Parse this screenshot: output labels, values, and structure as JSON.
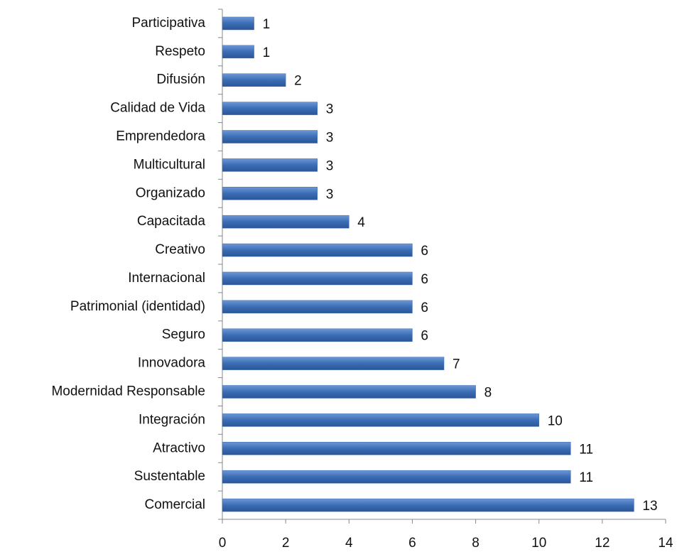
{
  "chart_data": {
    "type": "barh",
    "categories": [
      "Participativa",
      "Respeto",
      "Difusión",
      "Calidad de Vida",
      "Emprendedora",
      "Multicultural",
      "Organizado",
      "Capacitada",
      "Creativo",
      "Internacional",
      "Patrimonial (identidad)",
      "Seguro",
      "Innovadora",
      "Modernidad Responsable",
      "Integración",
      "Atractivo",
      "Sustentable",
      "Comercial"
    ],
    "values": [
      1,
      1,
      2,
      3,
      3,
      3,
      3,
      4,
      6,
      6,
      6,
      6,
      7,
      8,
      10,
      11,
      11,
      13
    ],
    "color": "#3b6db5",
    "xlim": [
      0,
      14
    ],
    "xticks": [
      0,
      2,
      4,
      6,
      8,
      10,
      12,
      14
    ],
    "grid": false
  }
}
